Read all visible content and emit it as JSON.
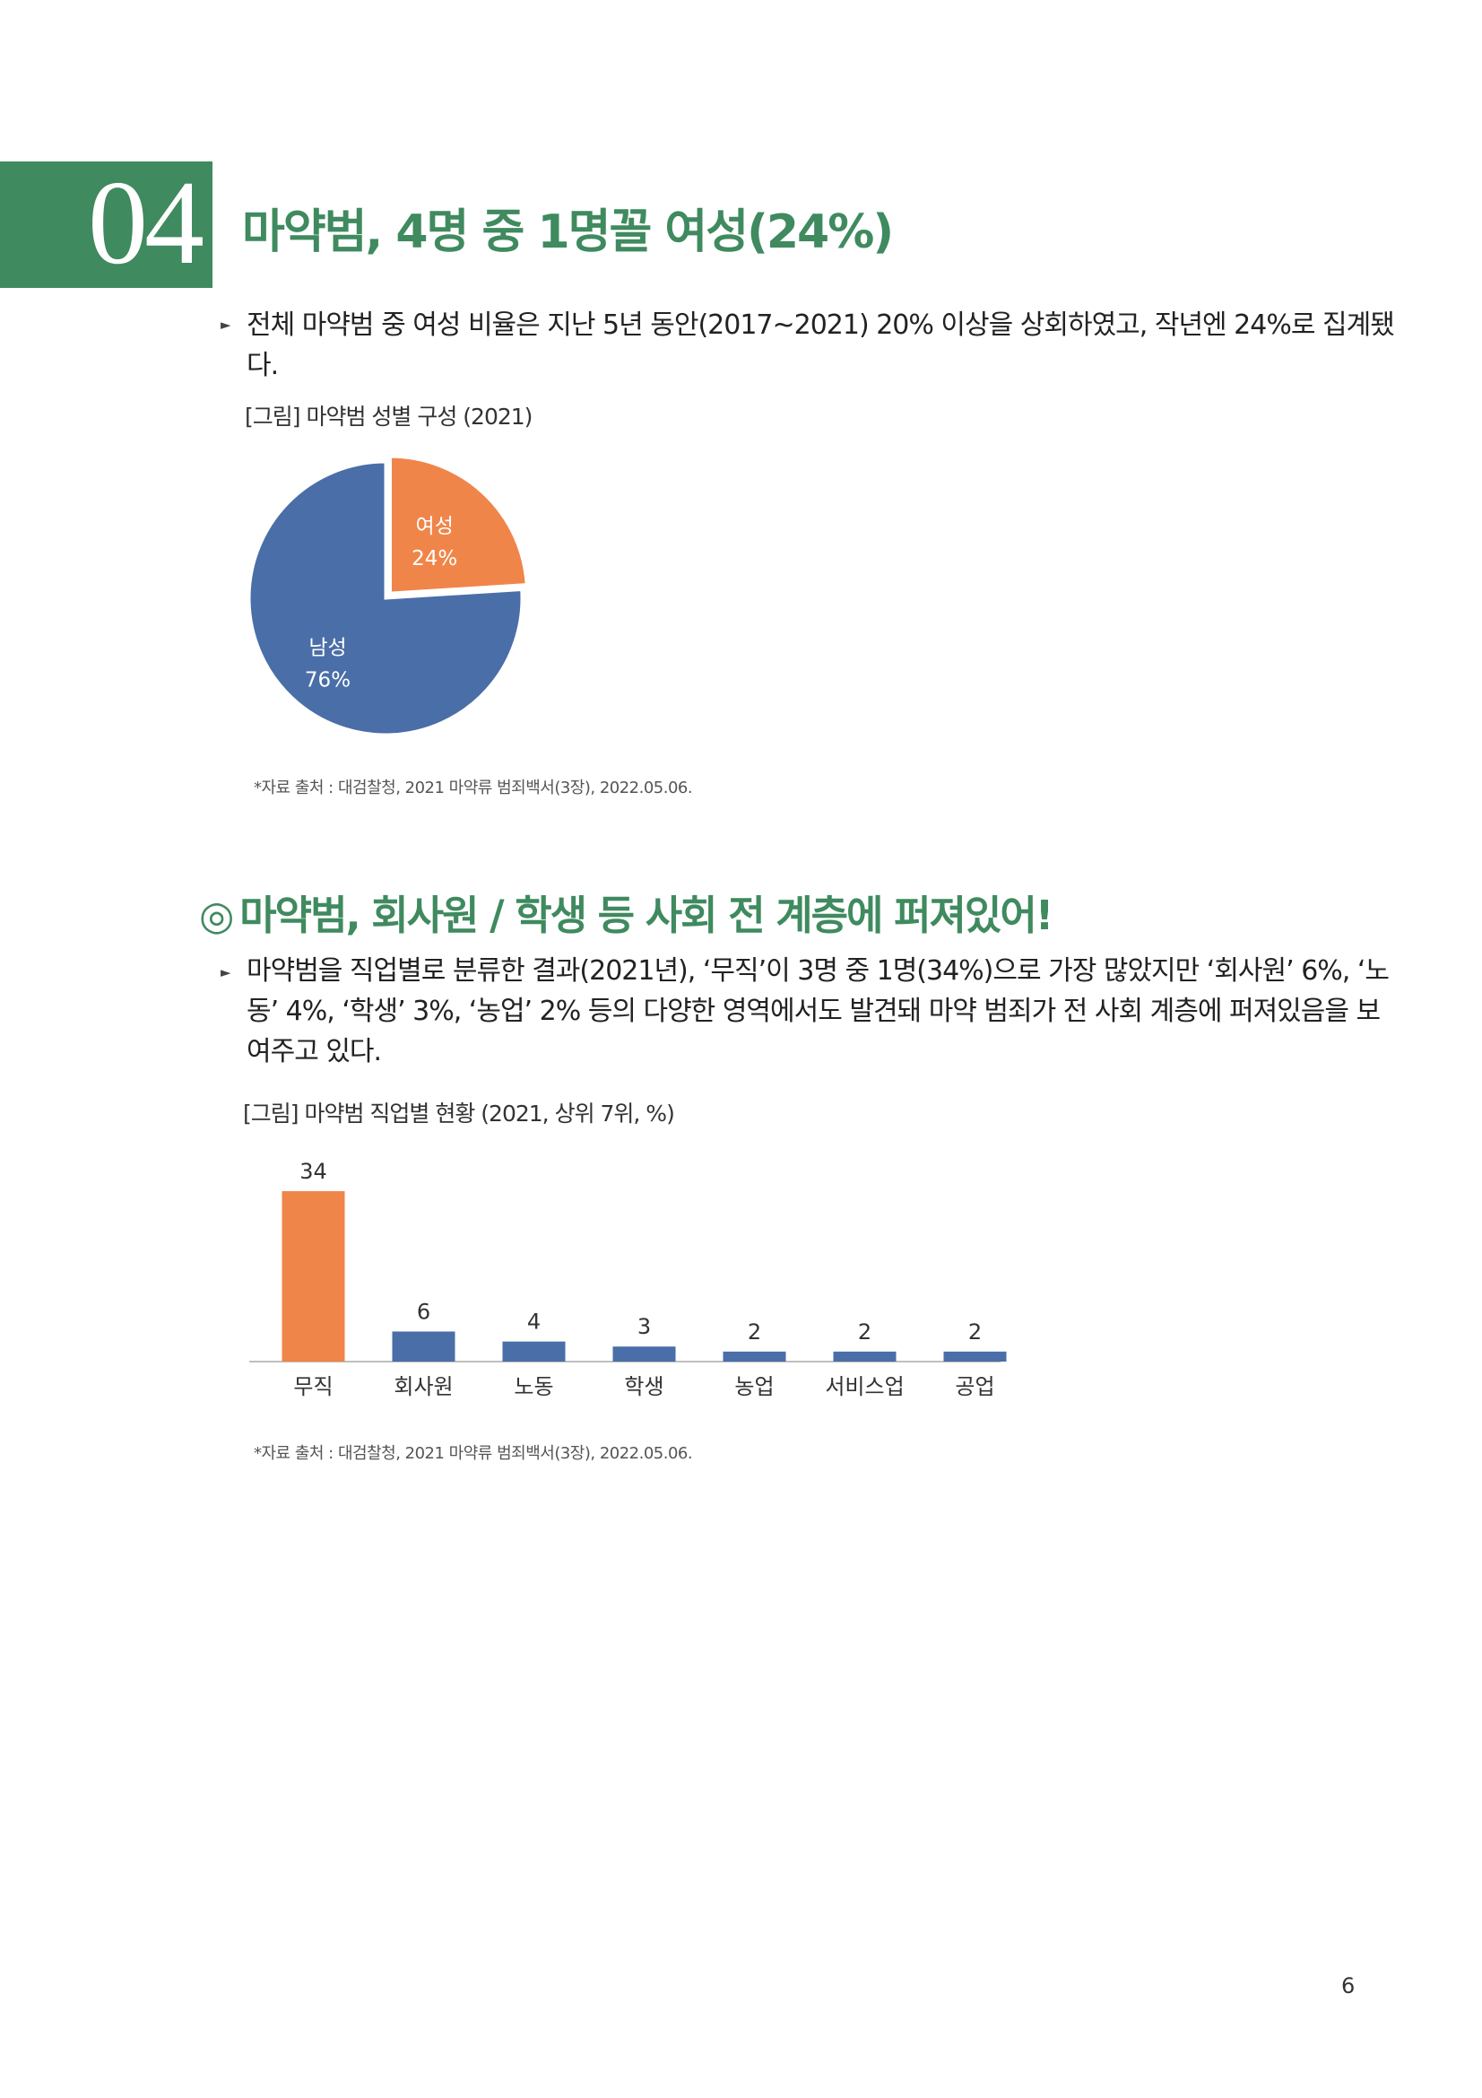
{
  "section": {
    "number": "04",
    "title": "마약범, 4명 중 1명꼴 여성(24%)"
  },
  "intro": {
    "bullet_icon": "triangle-bullet",
    "line1": "전체 마약범 중 여성 비율은 지난 5년 동안(2017~2021) 20% 이상을 상회하였고, 작년엔 24%로 집계됐",
    "line2": "다."
  },
  "figure1": {
    "caption": "[그림] 마약범 성별 구성 (2021)",
    "source": "*자료 출처 : 대검찰청, 2021 마약류 범죄백서(3장), 2022.05.06."
  },
  "section2": {
    "icon": "◎",
    "title": "마약범, 회사원 / 학생 등 사회 전 계층에 퍼져있어!",
    "line1": "마약범을 직업별로 분류한 결과(2021년), ‘무직’이 3명 중 1명(34%)으로 가장 많았지만 ‘회사원’ 6%, ‘노",
    "line2": "동’ 4%, ‘학생’ 3%, ‘농업’ 2% 등의 다양한 영역에서도 발견돼 마약 범죄가 전 사회 계층에 퍼져있음을 보",
    "line3": "여주고 있다."
  },
  "figure2": {
    "caption": "[그림] 마약범 직업별 현황 (2021, 상위 7위, %)",
    "source": "*자료 출처 : 대검찰청, 2021 마약류 범죄백서(3장), 2022.05.06."
  },
  "page_number": "6",
  "colors": {
    "green": "#3f8a5f",
    "orange": "#f0854a",
    "blue": "#4a6ea8"
  },
  "chart_data": [
    {
      "type": "pie",
      "title": "",
      "slices": [
        {
          "label": "여성",
          "value": 24,
          "value_label": "24%",
          "color": "#f0854a",
          "exploded": true
        },
        {
          "label": "남성",
          "value": 76,
          "value_label": "76%",
          "color": "#4a6ea8",
          "exploded": false
        }
      ]
    },
    {
      "type": "bar",
      "title": "",
      "categories": [
        "무직",
        "회사원",
        "노동",
        "학생",
        "농업",
        "서비스업",
        "공업"
      ],
      "values": [
        34,
        6,
        4,
        3,
        2,
        2,
        2
      ],
      "highlight_index": 0,
      "highlight_color": "#f0854a",
      "bar_color": "#4a6ea8",
      "ylim": [
        0,
        34
      ],
      "grid": false,
      "xlabel": "",
      "ylabel": ""
    }
  ]
}
